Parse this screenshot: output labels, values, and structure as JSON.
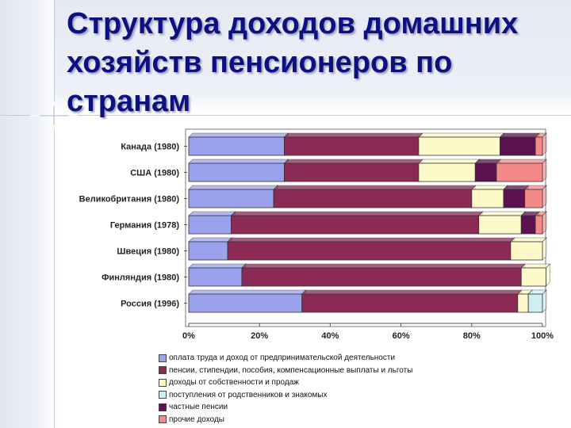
{
  "slide": {
    "title": "Структура доходов домашних хозяйств пенсионеров по странам"
  },
  "chart_data": {
    "type": "bar",
    "orientation": "horizontal",
    "stacked": "percent",
    "categories": [
      "Канада (1980)",
      "США (1980)",
      "Великобритания (1980)",
      "Германия (1978)",
      "Швеция (1980)",
      "Финляндия (1980)",
      "Россия (1996)"
    ],
    "series": [
      {
        "name": "оплата труда и доход от предпринимательской деятельности",
        "color": "#9aa2ee",
        "values": [
          27,
          27,
          24,
          12,
          11,
          15,
          32
        ]
      },
      {
        "name": "пенсии, стипендии, пособия, компенсационные выплаты и льготы",
        "color": "#8b2a55",
        "values": [
          38,
          38,
          56,
          70,
          80,
          79,
          61
        ]
      },
      {
        "name": "доходы от собственности и продаж",
        "color": "#fdf9c9",
        "values": [
          23,
          16,
          9,
          12,
          9,
          7,
          3
        ]
      },
      {
        "name": "поступления от родственников и знакомых",
        "color": "#cfeef3",
        "values": [
          0,
          0,
          0,
          0,
          0,
          0,
          4
        ]
      },
      {
        "name": "частные пенсии",
        "color": "#5c1150",
        "values": [
          10,
          6,
          6,
          4,
          0,
          0,
          0
        ]
      },
      {
        "name": "прочие доходы",
        "color": "#f48a88",
        "values": [
          2,
          13,
          5,
          2,
          0,
          0,
          0
        ]
      }
    ],
    "xticks": [
      "0%",
      "20%",
      "40%",
      "60%",
      "80%",
      "100%"
    ],
    "xlim": [
      0,
      100
    ],
    "legend_position": "bottom"
  }
}
